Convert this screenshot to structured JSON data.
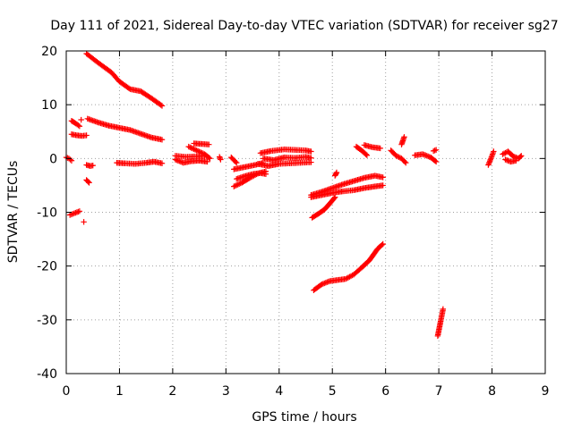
{
  "chart_data": {
    "type": "scatter",
    "title": "Day 111 of 2021, Sidereal Day-to-day VTEC variation (SDTVAR) for receiver sg27",
    "xlabel": "GPS time / hours",
    "ylabel": "SDTVAR / TECUs",
    "xlim": [
      0,
      9
    ],
    "ylim": [
      -40,
      20
    ],
    "xticks": [
      "0",
      "1",
      "2",
      "3",
      "4",
      "5",
      "6",
      "7",
      "8",
      "9"
    ],
    "yticks": [
      "20",
      "10",
      "0",
      "-10",
      "-20",
      "-30",
      "-40"
    ],
    "grid": true,
    "marker": "+",
    "color": "#ff0000",
    "segments": [
      [
        [
          0.0,
          0.2
        ],
        [
          0.05,
          0.0
        ],
        [
          0.1,
          -0.4
        ]
      ],
      [
        [
          0.07,
          -10.5
        ],
        [
          0.15,
          -10.2
        ],
        [
          0.25,
          -9.8
        ]
      ],
      [
        [
          0.1,
          4.5
        ],
        [
          0.2,
          4.3
        ],
        [
          0.3,
          4.2
        ],
        [
          0.38,
          4.3
        ]
      ],
      [
        [
          0.1,
          7.0
        ],
        [
          0.18,
          6.5
        ],
        [
          0.25,
          6.0
        ]
      ],
      [
        [
          0.28,
          7.2
        ]
      ],
      [
        [
          0.33,
          -11.8
        ]
      ],
      [
        [
          0.38,
          -1.2
        ],
        [
          0.45,
          -1.4
        ],
        [
          0.5,
          -1.3
        ]
      ],
      [
        [
          0.38,
          -4.0
        ],
        [
          0.43,
          -4.5
        ]
      ],
      [
        [
          0.38,
          19.5
        ],
        [
          0.6,
          17.8
        ],
        [
          0.85,
          16.0
        ],
        [
          1.0,
          14.3
        ],
        [
          1.2,
          12.9
        ],
        [
          1.4,
          12.5
        ],
        [
          1.6,
          11.2
        ],
        [
          1.8,
          9.8
        ]
      ],
      [
        [
          0.4,
          7.4
        ],
        [
          0.6,
          6.7
        ],
        [
          0.8,
          6.1
        ],
        [
          1.0,
          5.7
        ],
        [
          1.2,
          5.3
        ],
        [
          1.4,
          4.6
        ],
        [
          1.6,
          3.9
        ],
        [
          1.8,
          3.5
        ]
      ],
      [
        [
          0.95,
          -0.8
        ],
        [
          1.1,
          -0.9
        ],
        [
          1.3,
          -1.0
        ],
        [
          1.5,
          -0.8
        ],
        [
          1.65,
          -0.6
        ],
        [
          1.8,
          -0.9
        ]
      ],
      [
        [
          2.05,
          -0.2
        ],
        [
          2.2,
          -0.8
        ],
        [
          2.35,
          -0.5
        ],
        [
          2.5,
          -0.4
        ],
        [
          2.65,
          -0.6
        ]
      ],
      [
        [
          2.05,
          0.5
        ],
        [
          2.25,
          0.3
        ],
        [
          2.45,
          0.4
        ],
        [
          2.6,
          0.5
        ]
      ],
      [
        [
          2.3,
          2.2
        ],
        [
          2.45,
          1.5
        ],
        [
          2.6,
          0.8
        ],
        [
          2.7,
          0.0
        ]
      ],
      [
        [
          2.4,
          2.8
        ],
        [
          2.55,
          2.7
        ],
        [
          2.68,
          2.6
        ]
      ],
      [
        [
          2.88,
          0.3
        ],
        [
          2.9,
          -0.2
        ]
      ],
      [
        [
          3.1,
          0.2
        ],
        [
          3.2,
          -0.8
        ]
      ],
      [
        [
          3.15,
          -2.0
        ],
        [
          3.35,
          -1.6
        ],
        [
          3.55,
          -1.2
        ],
        [
          3.7,
          -0.8
        ]
      ],
      [
        [
          3.15,
          -5.2
        ],
        [
          3.3,
          -4.5
        ],
        [
          3.45,
          -3.6
        ],
        [
          3.6,
          -2.8
        ],
        [
          3.75,
          -2.4
        ]
      ],
      [
        [
          3.2,
          -3.8
        ],
        [
          3.35,
          -3.3
        ],
        [
          3.5,
          -2.9
        ],
        [
          3.65,
          -2.7
        ],
        [
          3.75,
          -2.9
        ]
      ],
      [
        [
          3.6,
          -1.0
        ],
        [
          3.8,
          -1.4
        ],
        [
          4.0,
          -1.0
        ],
        [
          4.2,
          -0.9
        ],
        [
          4.4,
          -0.8
        ],
        [
          4.6,
          -0.7
        ]
      ],
      [
        [
          3.65,
          1.0
        ],
        [
          3.85,
          1.4
        ],
        [
          4.1,
          1.7
        ],
        [
          4.3,
          1.6
        ],
        [
          4.5,
          1.5
        ],
        [
          4.6,
          1.3
        ]
      ],
      [
        [
          3.7,
          0.0
        ],
        [
          3.9,
          -0.3
        ],
        [
          4.1,
          0.2
        ],
        [
          4.3,
          0.1
        ],
        [
          4.5,
          0.3
        ],
        [
          4.6,
          0.1
        ]
      ],
      [
        [
          4.6,
          -6.8
        ],
        [
          4.8,
          -6.2
        ],
        [
          5.0,
          -5.5
        ],
        [
          5.2,
          -4.8
        ],
        [
          5.4,
          -4.2
        ],
        [
          5.6,
          -3.6
        ],
        [
          5.8,
          -3.2
        ],
        [
          5.95,
          -3.5
        ]
      ],
      [
        [
          4.6,
          -7.2
        ],
        [
          4.8,
          -6.8
        ],
        [
          5.0,
          -6.4
        ],
        [
          5.2,
          -6.1
        ],
        [
          5.4,
          -5.9
        ],
        [
          5.6,
          -5.5
        ],
        [
          5.8,
          -5.2
        ],
        [
          5.95,
          -5.0
        ]
      ],
      [
        [
          4.62,
          -11.0
        ],
        [
          4.75,
          -10.2
        ],
        [
          4.85,
          -9.5
        ],
        [
          4.95,
          -8.4
        ],
        [
          5.05,
          -7.2
        ]
      ],
      [
        [
          4.65,
          -24.5
        ],
        [
          4.8,
          -23.4
        ],
        [
          4.95,
          -22.8
        ],
        [
          5.1,
          -22.6
        ],
        [
          5.25,
          -22.4
        ],
        [
          5.4,
          -21.6
        ],
        [
          5.55,
          -20.3
        ],
        [
          5.7,
          -18.9
        ],
        [
          5.85,
          -16.8
        ],
        [
          5.95,
          -15.9
        ]
      ],
      [
        [
          5.05,
          -3.2
        ],
        [
          5.08,
          -2.6
        ]
      ],
      [
        [
          5.45,
          2.2
        ],
        [
          5.55,
          1.5
        ],
        [
          5.65,
          0.6
        ]
      ],
      [
        [
          5.6,
          2.5
        ],
        [
          5.75,
          2.1
        ],
        [
          5.9,
          1.9
        ]
      ],
      [
        [
          6.1,
          1.5
        ],
        [
          6.2,
          0.5
        ],
        [
          6.3,
          0.0
        ],
        [
          6.38,
          -0.8
        ]
      ],
      [
        [
          6.3,
          2.6
        ],
        [
          6.35,
          4.0
        ]
      ],
      [
        [
          6.55,
          0.6
        ],
        [
          6.7,
          0.8
        ],
        [
          6.85,
          0.2
        ],
        [
          6.95,
          -0.6
        ]
      ],
      [
        [
          6.9,
          1.4
        ],
        [
          6.95,
          1.6
        ]
      ],
      [
        [
          6.98,
          -33.0
        ],
        [
          7.03,
          -30.5
        ],
        [
          7.08,
          -28.0
        ]
      ],
      [
        [
          7.93,
          -1.2
        ],
        [
          7.98,
          0.0
        ],
        [
          8.03,
          1.3
        ]
      ],
      [
        [
          8.2,
          0.8
        ],
        [
          8.3,
          1.3
        ],
        [
          8.4,
          0.4
        ],
        [
          8.5,
          0.0
        ],
        [
          8.55,
          0.5
        ]
      ],
      [
        [
          8.25,
          -0.2
        ],
        [
          8.35,
          -0.6
        ],
        [
          8.45,
          -0.4
        ]
      ]
    ]
  }
}
